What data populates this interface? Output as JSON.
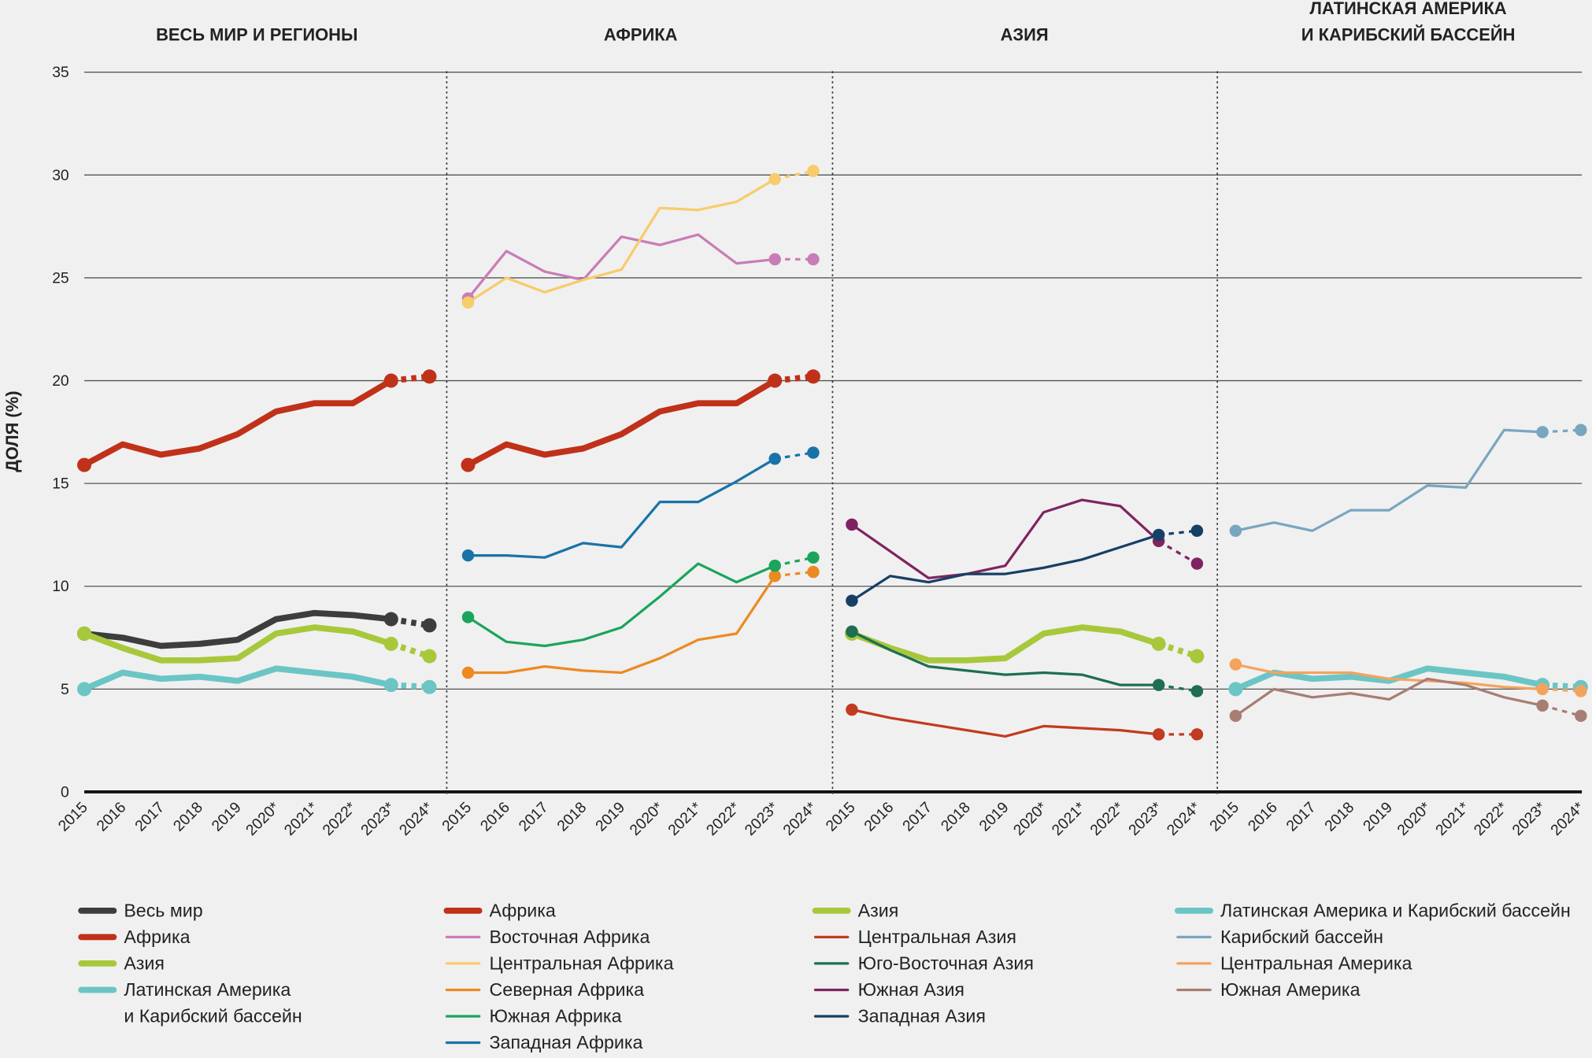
{
  "chart_data": {
    "type": "line",
    "ylabel": "ДОЛЯ (%)",
    "ylim": [
      0,
      35
    ],
    "yticks": [
      0,
      5,
      10,
      15,
      20,
      25,
      30,
      35
    ],
    "grid": true,
    "panels": [
      {
        "title": "ВЕСЬ МИР И РЕГИОНЫ",
        "categories": [
          "2015",
          "2016",
          "2017",
          "2018",
          "2019",
          "2020*",
          "2021*",
          "2022*",
          "2023*",
          "2024*"
        ],
        "series": [
          {
            "name": "Весь мир",
            "color": "#3d3d3d",
            "line_width": 6,
            "values": [
              7.7,
              7.5,
              7.1,
              7.2,
              7.4,
              8.4,
              8.7,
              8.6,
              8.4,
              8.1
            ]
          },
          {
            "name": "Африка",
            "color": "#c0311a",
            "line_width": 6,
            "values": [
              15.9,
              16.9,
              16.4,
              16.7,
              17.4,
              18.5,
              18.9,
              18.9,
              20.0,
              20.2
            ]
          },
          {
            "name": "Азия",
            "color": "#a8c83c",
            "line_width": 6,
            "values": [
              7.7,
              7.0,
              6.4,
              6.4,
              6.5,
              7.7,
              8.0,
              7.8,
              7.2,
              6.6
            ]
          },
          {
            "name": "Латинская Америка\nи Карибский бассейн",
            "color": "#6cc5c5",
            "line_width": 6,
            "values": [
              5.0,
              5.8,
              5.5,
              5.6,
              5.4,
              6.0,
              5.8,
              5.6,
              5.2,
              5.1
            ]
          }
        ]
      },
      {
        "title": "АФРИКА",
        "categories": [
          "2015",
          "2016",
          "2017",
          "2018",
          "2019",
          "2020*",
          "2021*",
          "2022*",
          "2023*",
          "2024*"
        ],
        "series": [
          {
            "name": "Африка",
            "color": "#c0311a",
            "line_width": 6,
            "values": [
              15.9,
              16.9,
              16.4,
              16.7,
              17.4,
              18.5,
              18.9,
              18.9,
              20.0,
              20.2
            ]
          },
          {
            "name": "Восточная Африка",
            "color": "#c87db6",
            "line_width": 2.5,
            "values": [
              24.0,
              26.3,
              25.3,
              24.9,
              27.0,
              26.6,
              27.1,
              25.7,
              25.9,
              25.9
            ]
          },
          {
            "name": "Центральная Африка",
            "color": "#f7cc6a",
            "line_width": 2.5,
            "values": [
              23.8,
              25.0,
              24.3,
              24.9,
              25.4,
              28.4,
              28.3,
              28.7,
              29.8,
              30.2
            ]
          },
          {
            "name": "Северная Африка",
            "color": "#ec8a22",
            "line_width": 2.5,
            "values": [
              5.8,
              5.8,
              6.1,
              5.9,
              5.8,
              6.5,
              7.4,
              7.7,
              10.5,
              10.7
            ]
          },
          {
            "name": "Южная Африка",
            "color": "#1aa45c",
            "line_width": 2.5,
            "values": [
              8.5,
              7.3,
              7.1,
              7.4,
              8.0,
              9.5,
              11.1,
              10.2,
              11.0,
              11.4
            ]
          },
          {
            "name": "Западная Африка",
            "color": "#1a73a8",
            "line_width": 2.5,
            "values": [
              11.5,
              11.5,
              11.4,
              12.1,
              11.9,
              14.1,
              14.1,
              15.1,
              16.2,
              16.5
            ]
          }
        ]
      },
      {
        "title": "АЗИЯ",
        "categories": [
          "2015",
          "2016",
          "2017",
          "2018",
          "2019",
          "2020*",
          "2021*",
          "2022*",
          "2023*",
          "2024*"
        ],
        "series": [
          {
            "name": "Азия",
            "color": "#a8c83c",
            "line_width": 6,
            "values": [
              7.7,
              7.0,
              6.4,
              6.4,
              6.5,
              7.7,
              8.0,
              7.8,
              7.2,
              6.6
            ]
          },
          {
            "name": "Центральная Азия",
            "color": "#c23a1f",
            "line_width": 2.5,
            "values": [
              4.0,
              3.6,
              3.3,
              3.0,
              2.7,
              3.2,
              3.1,
              3.0,
              2.8,
              2.8
            ]
          },
          {
            "name": "Юго-Восточная Азия",
            "color": "#1e6e52",
            "line_width": 2.5,
            "values": [
              7.8,
              6.9,
              6.1,
              5.9,
              5.7,
              5.8,
              5.7,
              5.2,
              5.2,
              4.9
            ]
          },
          {
            "name": "Южная Азия",
            "color": "#7f2461",
            "line_width": 2.5,
            "values": [
              13.0,
              11.7,
              10.4,
              10.6,
              11.0,
              13.6,
              14.2,
              13.9,
              12.2,
              11.1
            ]
          },
          {
            "name": "Западная Азия",
            "color": "#163f66",
            "line_width": 2.5,
            "values": [
              9.3,
              10.5,
              10.2,
              10.6,
              10.6,
              10.9,
              11.3,
              11.9,
              12.5,
              12.7
            ]
          }
        ]
      },
      {
        "title": "ЛАТИНСКАЯ АМЕРИКА\nИ КАРИБСКИЙ БАССЕЙН",
        "categories": [
          "2015",
          "2016",
          "2017",
          "2018",
          "2019",
          "2020*",
          "2021*",
          "2022*",
          "2023*",
          "2024*"
        ],
        "series": [
          {
            "name": "Латинская Америка и Карибский бассейн",
            "color": "#6cc5c5",
            "line_width": 6,
            "values": [
              5.0,
              5.8,
              5.5,
              5.6,
              5.4,
              6.0,
              5.8,
              5.6,
              5.2,
              5.1
            ]
          },
          {
            "name": "Карибский бассейн",
            "color": "#79a6bf",
            "line_width": 2.5,
            "values": [
              12.7,
              13.1,
              12.7,
              13.7,
              13.7,
              14.9,
              14.8,
              17.6,
              17.5,
              17.6
            ]
          },
          {
            "name": "Центральная Америка",
            "color": "#f4a35c",
            "line_width": 2.5,
            "values": [
              6.2,
              5.8,
              5.8,
              5.8,
              5.5,
              5.4,
              5.3,
              5.1,
              5.0,
              4.9
            ]
          },
          {
            "name": "Южная Америка",
            "color": "#a87d74",
            "line_width": 2.5,
            "values": [
              3.7,
              5.0,
              4.6,
              4.8,
              4.5,
              5.5,
              5.2,
              4.6,
              4.2,
              3.7
            ]
          }
        ]
      }
    ]
  }
}
